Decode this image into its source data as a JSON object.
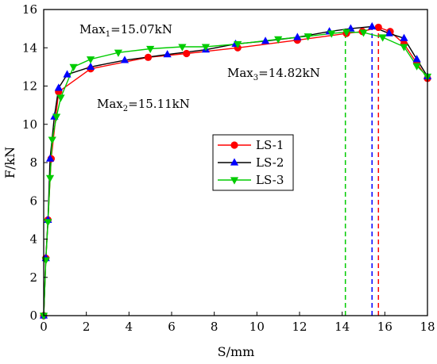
{
  "chart_data": {
    "type": "line",
    "title": "",
    "xlabel": "S/mm",
    "ylabel": "F/kN",
    "xlim": [
      0,
      18
    ],
    "ylim": [
      0,
      16
    ],
    "xticks": [
      0,
      2,
      4,
      6,
      8,
      10,
      12,
      14,
      16,
      18
    ],
    "yticks": [
      0,
      2,
      4,
      6,
      8,
      10,
      12,
      14,
      16
    ],
    "grid": false,
    "legend_position": "center",
    "series": [
      {
        "name": "LS-1",
        "color": "#ff0000",
        "marker": "circle",
        "points": [
          [
            0,
            0
          ],
          [
            0.1,
            3.0
          ],
          [
            0.2,
            5.0
          ],
          [
            0.35,
            8.2
          ],
          [
            0.7,
            11.7
          ],
          [
            2.2,
            12.9
          ],
          [
            4.9,
            13.5
          ],
          [
            6.7,
            13.7
          ],
          [
            9.1,
            14.0
          ],
          [
            11.9,
            14.4
          ],
          [
            14.2,
            14.75
          ],
          [
            14.95,
            14.85
          ],
          [
            15.7,
            15.07
          ],
          [
            16.25,
            14.85
          ],
          [
            16.9,
            14.2
          ],
          [
            17.5,
            13.2
          ],
          [
            18,
            12.4
          ]
        ]
      },
      {
        "name": "LS-2",
        "color": "#0000ff",
        "marker": "triangle-up",
        "points": [
          [
            0,
            0
          ],
          [
            0.1,
            3.0
          ],
          [
            0.2,
            5.0
          ],
          [
            0.3,
            8.2
          ],
          [
            0.5,
            10.4
          ],
          [
            0.7,
            11.9
          ],
          [
            1.1,
            12.6
          ],
          [
            2.2,
            13.0
          ],
          [
            3.8,
            13.35
          ],
          [
            5.8,
            13.65
          ],
          [
            7.6,
            13.9
          ],
          [
            9.0,
            14.2
          ],
          [
            10.4,
            14.35
          ],
          [
            11.9,
            14.55
          ],
          [
            13.4,
            14.85
          ],
          [
            14.4,
            15.0
          ],
          [
            15.4,
            15.11
          ],
          [
            16.2,
            14.75
          ],
          [
            16.9,
            14.5
          ],
          [
            17.5,
            13.4
          ],
          [
            18,
            12.5
          ]
        ]
      },
      {
        "name": "LS-3",
        "color": "#00cc00",
        "marker": "triangle-down",
        "points": [
          [
            0,
            0
          ],
          [
            0.1,
            2.9
          ],
          [
            0.2,
            4.9
          ],
          [
            0.3,
            7.2
          ],
          [
            0.4,
            9.2
          ],
          [
            0.6,
            10.4
          ],
          [
            0.8,
            11.4
          ],
          [
            1.4,
            13.0
          ],
          [
            2.2,
            13.4
          ],
          [
            3.5,
            13.75
          ],
          [
            5.0,
            13.95
          ],
          [
            6.5,
            14.05
          ],
          [
            7.6,
            14.05
          ],
          [
            9.1,
            14.2
          ],
          [
            11.0,
            14.45
          ],
          [
            12.4,
            14.6
          ],
          [
            13.5,
            14.75
          ],
          [
            14.2,
            14.82
          ],
          [
            15.0,
            14.8
          ],
          [
            15.9,
            14.55
          ],
          [
            16.9,
            14.05
          ],
          [
            17.5,
            13.05
          ],
          [
            18,
            12.5
          ]
        ]
      }
    ],
    "peak_markers": [
      {
        "x": 15.7,
        "color": "#ff0000"
      },
      {
        "x": 15.4,
        "color": "#0000ff"
      },
      {
        "x": 14.15,
        "color": "#00cc00"
      }
    ],
    "annotations": [
      {
        "base": "Max",
        "sub": "1",
        "rest": "=15.07kN"
      },
      {
        "base": "Max",
        "sub": "2",
        "rest": "=15.11kN"
      },
      {
        "base": "Max",
        "sub": "3",
        "rest": "=14.82kN"
      }
    ]
  }
}
